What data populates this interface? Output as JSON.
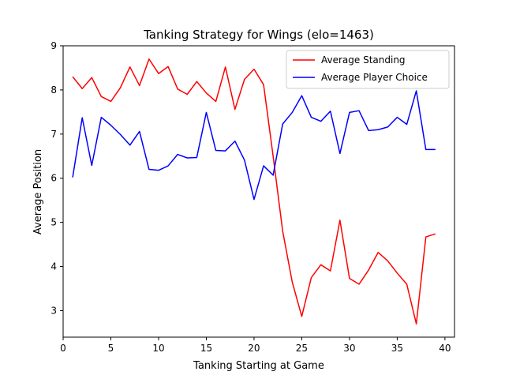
{
  "chart_data": {
    "type": "line",
    "title": "Tanking Strategy for Wings (elo=1463)",
    "xlabel": "Tanking Starting at Game",
    "ylabel": "Average Position",
    "xlim": [
      0,
      41
    ],
    "ylim": [
      2.4,
      9
    ],
    "xticks": [
      0,
      5,
      10,
      15,
      20,
      25,
      30,
      35,
      40
    ],
    "yticks": [
      3,
      4,
      5,
      6,
      7,
      8,
      9
    ],
    "legend": "top-right",
    "x": [
      1,
      2,
      3,
      4,
      5,
      6,
      7,
      8,
      9,
      10,
      11,
      12,
      13,
      14,
      15,
      16,
      17,
      18,
      19,
      20,
      21,
      22,
      23,
      24,
      25,
      26,
      27,
      28,
      29,
      30,
      31,
      32,
      33,
      34,
      35,
      36,
      37,
      38,
      39
    ],
    "series": [
      {
        "name": "Average Standing",
        "color": "#ff0000",
        "values": [
          8.3,
          8.03,
          8.28,
          7.85,
          7.74,
          8.05,
          8.52,
          8.1,
          8.7,
          8.37,
          8.53,
          8.02,
          7.9,
          8.19,
          7.93,
          7.74,
          8.52,
          7.56,
          8.24,
          8.47,
          8.12,
          6.5,
          4.8,
          3.65,
          2.87,
          3.75,
          4.04,
          3.9,
          5.05,
          3.73,
          3.6,
          3.92,
          4.32,
          4.13,
          3.85,
          3.6,
          2.7,
          4.67,
          4.74
        ]
      },
      {
        "name": "Average Player Choice",
        "color": "#0000ff",
        "values": [
          6.02,
          7.37,
          6.29,
          7.38,
          7.2,
          6.99,
          6.75,
          7.06,
          6.2,
          6.18,
          6.28,
          6.54,
          6.46,
          6.47,
          7.49,
          6.63,
          6.62,
          6.84,
          6.41,
          5.52,
          6.28,
          6.07,
          7.23,
          7.49,
          7.87,
          7.38,
          7.29,
          7.52,
          6.56,
          7.49,
          7.53,
          7.08,
          7.1,
          7.16,
          7.38,
          7.22,
          7.98,
          6.65,
          6.65
        ]
      }
    ]
  }
}
